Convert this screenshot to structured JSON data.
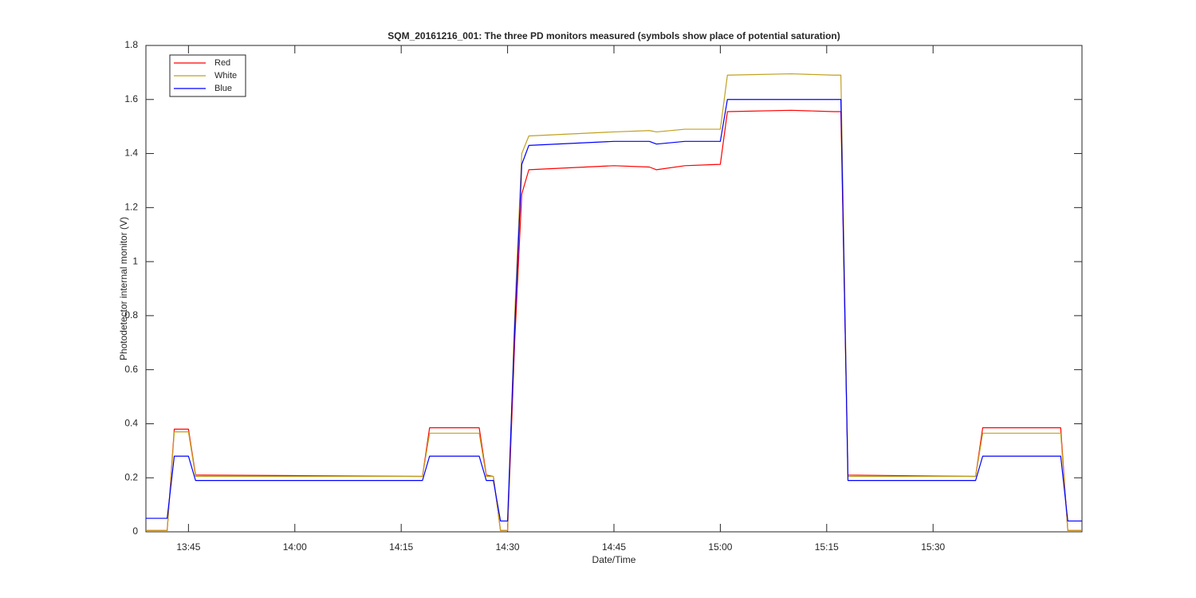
{
  "chart_data": {
    "type": "line",
    "title": "SQM_20161216_001: The three PD monitors measured (symbols show place of potential saturation)",
    "x_label": "Date/Time",
    "y_label": "Photodetector internal monitor (V)",
    "x": [
      "13:39",
      "13:42",
      "13:43",
      "13:45",
      "13:46",
      "14:00",
      "14:18",
      "14:19",
      "14:26",
      "14:27",
      "14:28",
      "14:29",
      "14:30",
      "14:31",
      "14:32",
      "14:33",
      "14:45",
      "14:50",
      "14:51",
      "14:55",
      "15:00",
      "15:01",
      "15:10",
      "15:16",
      "15:17",
      "15:18",
      "15:36",
      "15:37",
      "15:48",
      "15:49",
      "15:51"
    ],
    "series": [
      {
        "name": "Red",
        "color": "#ff0000",
        "values": [
          0.005,
          0.005,
          0.38,
          0.38,
          0.21,
          0.208,
          0.205,
          0.385,
          0.385,
          0.21,
          0.205,
          0.005,
          0.005,
          0.7,
          1.25,
          1.34,
          1.355,
          1.35,
          1.34,
          1.355,
          1.36,
          1.555,
          1.56,
          1.555,
          1.555,
          0.21,
          0.205,
          0.385,
          0.385,
          0.005,
          0.005
        ]
      },
      {
        "name": "White",
        "color": "#c0a020",
        "values": [
          0.005,
          0.005,
          0.37,
          0.37,
          0.205,
          0.205,
          0.205,
          0.365,
          0.365,
          0.205,
          0.205,
          0.005,
          0.005,
          0.8,
          1.4,
          1.465,
          1.48,
          1.485,
          1.48,
          1.49,
          1.49,
          1.69,
          1.695,
          1.69,
          1.69,
          0.205,
          0.205,
          0.365,
          0.365,
          0.005,
          0.005
        ]
      },
      {
        "name": "Blue",
        "color": "#0000ff",
        "values": [
          0.05,
          0.05,
          0.28,
          0.28,
          0.19,
          0.19,
          0.19,
          0.28,
          0.28,
          0.19,
          0.19,
          0.04,
          0.04,
          0.75,
          1.36,
          1.43,
          1.445,
          1.445,
          1.435,
          1.445,
          1.445,
          1.6,
          1.6,
          1.6,
          1.6,
          0.19,
          0.19,
          0.28,
          0.28,
          0.04,
          0.04
        ]
      }
    ],
    "xlim": [
      "13:39",
      "15:51"
    ],
    "xticks": [
      "13:45",
      "14:00",
      "14:15",
      "14:30",
      "14:45",
      "15:00",
      "15:15",
      "15:30"
    ],
    "ylim": [
      0,
      1.8
    ],
    "yticks": [
      0,
      0.2,
      0.4,
      0.6,
      0.8,
      1,
      1.2,
      1.4,
      1.6,
      1.8
    ],
    "grid": false,
    "legend": "upper left"
  }
}
